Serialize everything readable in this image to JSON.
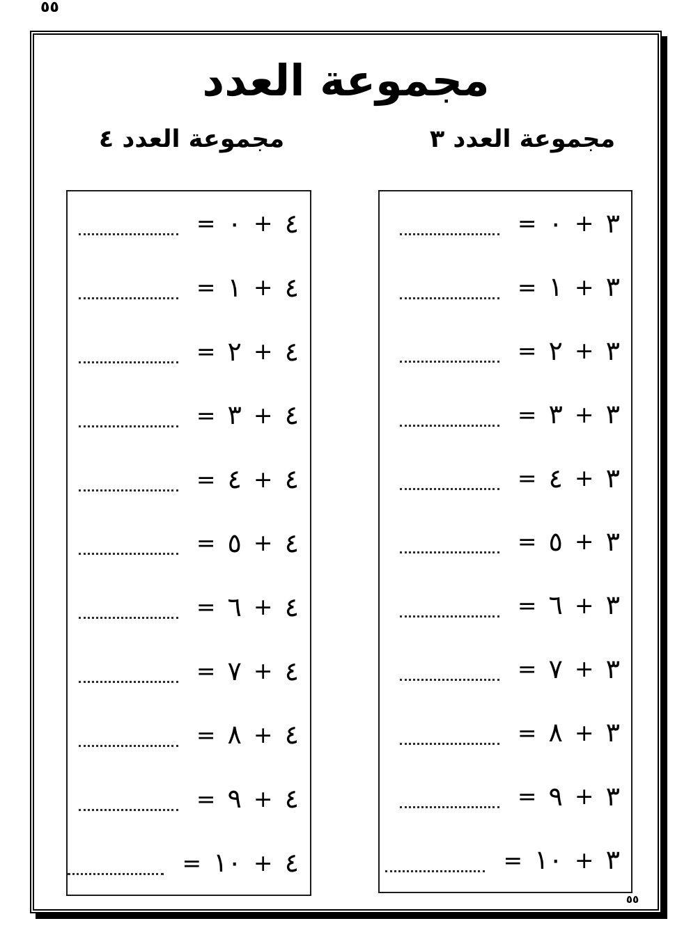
{
  "page": {
    "top_page_number": "٥٥",
    "bottom_page_number": "٥٥"
  },
  "title": "مجموعة العدد",
  "symbols": {
    "plus": "+",
    "equals": "="
  },
  "columns": [
    {
      "id": "set-of-three",
      "header": "مجموعة العدد ٣",
      "base": "٣",
      "addends": [
        "٠",
        "١",
        "٢",
        "٣",
        "٤",
        "٥",
        "٦",
        "٧",
        "٨",
        "٩",
        "١٠"
      ]
    },
    {
      "id": "set-of-four",
      "header": "مجموعة العدد ٤",
      "base": "٤",
      "addends": [
        "٠",
        "١",
        "٢",
        "٣",
        "٤",
        "٥",
        "٦",
        "٧",
        "٨",
        "٩",
        "١٠"
      ]
    }
  ]
}
